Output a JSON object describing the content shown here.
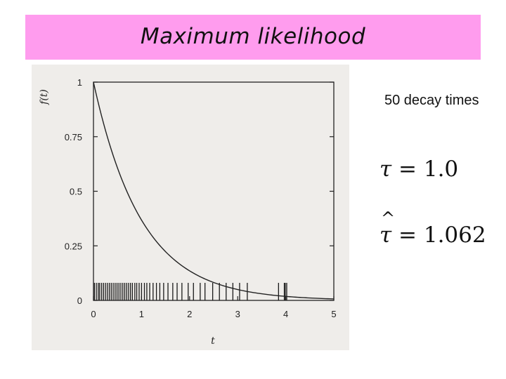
{
  "slide": {
    "title": "Maximum likelihood",
    "note": "50 decay times",
    "true_tau": {
      "symbol": "τ",
      "equals": "=",
      "value": "1.0"
    },
    "est_tau": {
      "symbol": "τ",
      "hat": "^",
      "equals": "=",
      "value": "1.062"
    }
  },
  "colors": {
    "title_band": "#ff9cee",
    "scan_bg": "#efedea",
    "ink": "#1a1a1a"
  },
  "chart_data": {
    "type": "line",
    "xlabel": "t",
    "ylabel": "f(t)",
    "xlim": [
      0,
      5
    ],
    "ylim": [
      0,
      1
    ],
    "x_ticks": [
      "0",
      "1",
      "2",
      "3",
      "4",
      "5"
    ],
    "y_ticks": [
      "0",
      "0.25",
      "0.5",
      "0.75",
      "1"
    ],
    "series": [
      {
        "kind": "curve",
        "function": "exp(-t/tau)",
        "tau": 1.0,
        "x": [
          0,
          0.25,
          0.5,
          0.75,
          1,
          1.5,
          2,
          2.5,
          3,
          3.5,
          4,
          4.5,
          5
        ],
        "y": [
          1.0,
          0.78,
          0.607,
          0.472,
          0.368,
          0.223,
          0.135,
          0.082,
          0.05,
          0.03,
          0.018,
          0.011,
          0.007
        ]
      },
      {
        "kind": "rug",
        "label": "50 decay times",
        "x": [
          0.02,
          0.06,
          0.1,
          0.13,
          0.17,
          0.21,
          0.25,
          0.29,
          0.33,
          0.37,
          0.41,
          0.45,
          0.49,
          0.53,
          0.57,
          0.61,
          0.65,
          0.69,
          0.73,
          0.77,
          0.81,
          0.86,
          0.9,
          0.95,
          1.0,
          1.06,
          1.11,
          1.17,
          1.24,
          1.31,
          1.38,
          1.46,
          1.55,
          1.65,
          1.74,
          1.84,
          1.97,
          2.08,
          2.22,
          2.32,
          2.48,
          2.62,
          2.76,
          2.9,
          3.04,
          3.2,
          3.85,
          3.97,
          3.99,
          4.02
        ]
      }
    ]
  }
}
